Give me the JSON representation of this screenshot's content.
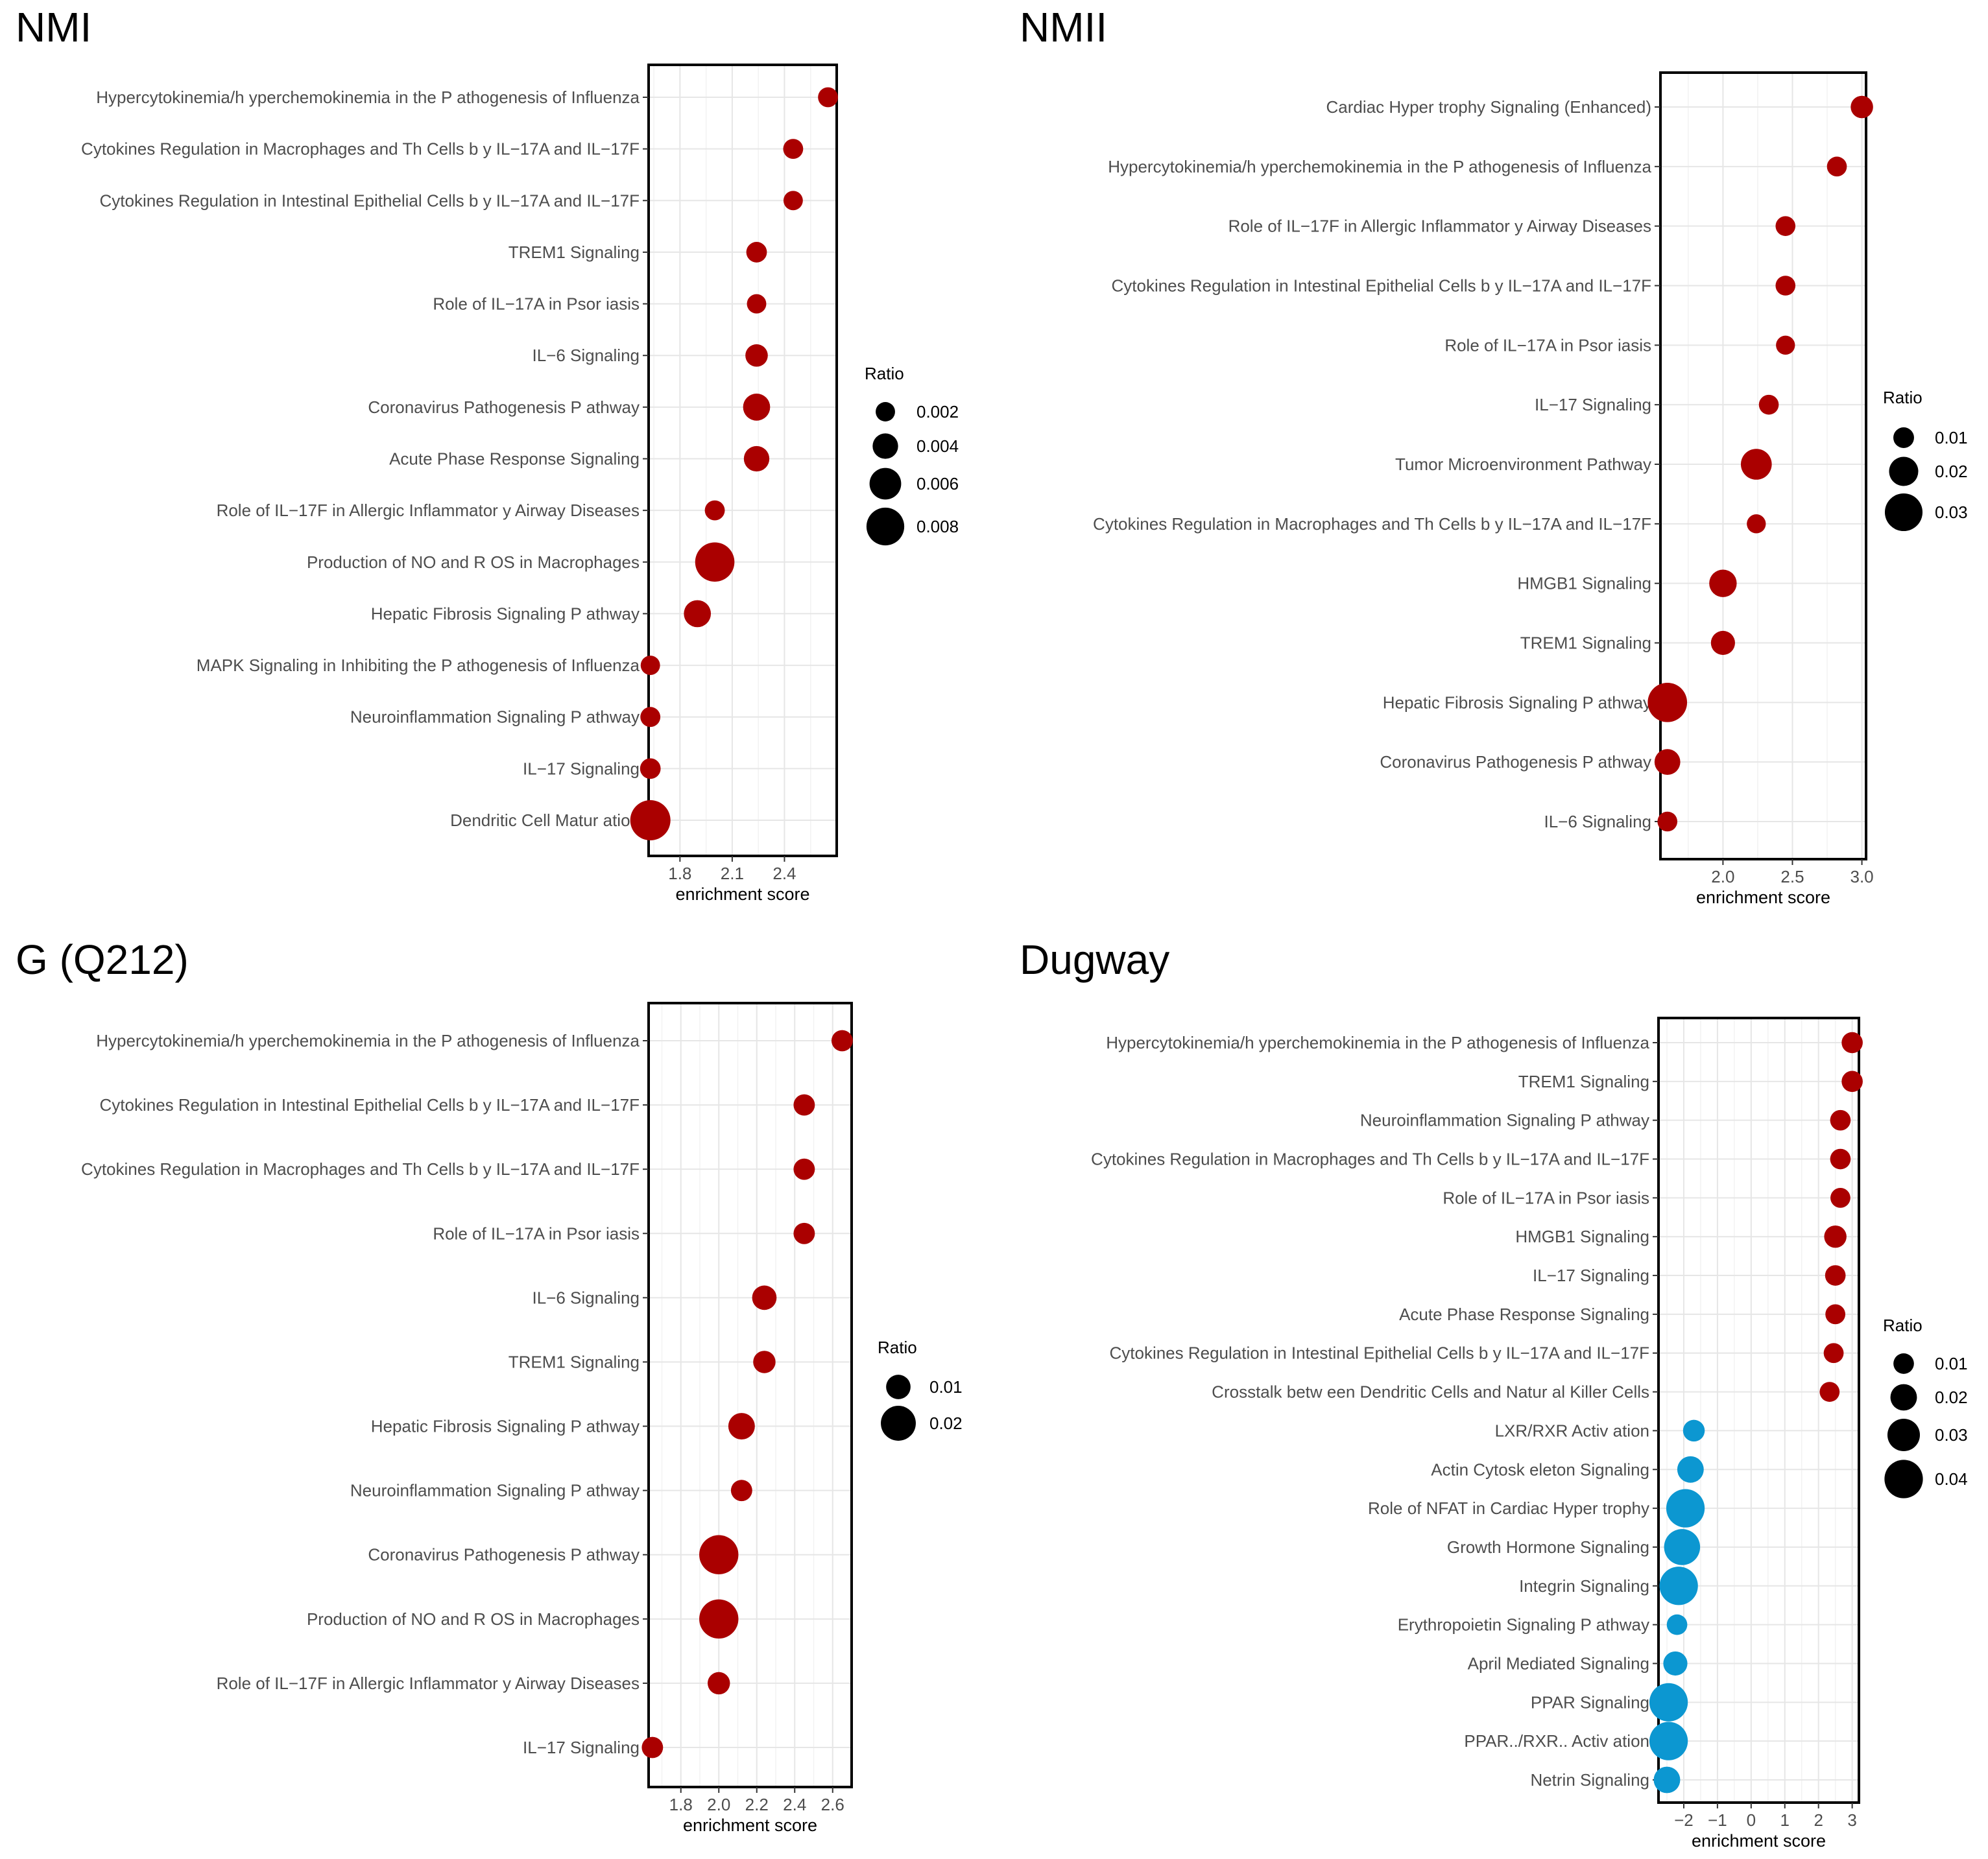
{
  "chart_data": [
    {
      "type": "scatter",
      "panel_title": "NMI",
      "xlabel": "enrichment score",
      "xlim": [
        1.62,
        2.7
      ],
      "xticks": [
        1.8,
        2.1,
        2.4
      ],
      "xtick_labels": [
        "1.8",
        "2.1",
        "2.4"
      ],
      "size_legend_title": "Ratio",
      "size_legend": [
        {
          "label": "0.002",
          "value": 0.002
        },
        {
          "label": "0.004",
          "value": 0.004
        },
        {
          "label": "0.006",
          "value": 0.006
        },
        {
          "label": "0.008",
          "value": 0.008
        }
      ],
      "size_range": [
        0.0016,
        0.0088
      ],
      "points": [
        {
          "label": "Hypercytokinemia/h yperchemokinemia in the P athogenesis of Influenza",
          "score": 2.65,
          "ratio": 0.0022,
          "color": "#aa0000"
        },
        {
          "label": "Cytokines Regulation in Macrophages and Th Cells b  y IL−17A and IL−17F",
          "score": 2.45,
          "ratio": 0.0022,
          "color": "#aa0000"
        },
        {
          "label": "Cytokines Regulation in Intestinal Epithelial Cells b  y IL−17A and IL−17F",
          "score": 2.45,
          "ratio": 0.002,
          "color": "#aa0000"
        },
        {
          "label": "TREM1 Signaling",
          "score": 2.24,
          "ratio": 0.0024,
          "color": "#aa0000"
        },
        {
          "label": "Role of IL−17A in Psor iasis",
          "score": 2.24,
          "ratio": 0.002,
          "color": "#aa0000"
        },
        {
          "label": "IL−6 Signaling",
          "score": 2.24,
          "ratio": 0.003,
          "color": "#aa0000"
        },
        {
          "label": "Coronavirus Pathogenesis P athway",
          "score": 2.24,
          "ratio": 0.0045,
          "color": "#aa0000"
        },
        {
          "label": "Acute Phase Response Signaling",
          "score": 2.24,
          "ratio": 0.004,
          "color": "#aa0000"
        },
        {
          "label": "Role of IL−17F in Allergic Inflammator y Airway Diseases",
          "score": 2.0,
          "ratio": 0.0022,
          "color": "#aa0000"
        },
        {
          "label": "Production of NO and R OS in Macrophages",
          "score": 2.0,
          "ratio": 0.0085,
          "color": "#aa0000"
        },
        {
          "label": "Hepatic Fibrosis Signaling P athway",
          "score": 1.9,
          "ratio": 0.0045,
          "color": "#aa0000"
        },
        {
          "label": "MAPK Signaling in Inhibiting the P athogenesis of Influenza",
          "score": 1.63,
          "ratio": 0.002,
          "color": "#aa0000"
        },
        {
          "label": "Neuroinflammation Signaling P athway",
          "score": 1.63,
          "ratio": 0.0022,
          "color": "#aa0000"
        },
        {
          "label": "IL−17 Signaling",
          "score": 1.63,
          "ratio": 0.0024,
          "color": "#aa0000"
        },
        {
          "label": "Dendritic Cell Matur ation",
          "score": 1.63,
          "ratio": 0.0088,
          "color": "#aa0000"
        }
      ]
    },
    {
      "type": "scatter",
      "panel_title": "NMII",
      "xlabel": "enrichment score",
      "xlim": [
        1.55,
        3.03
      ],
      "xticks": [
        2.0,
        2.5,
        3.0
      ],
      "xtick_labels": [
        "2.0",
        "2.5",
        "3.0"
      ],
      "size_legend_title": "Ratio",
      "size_legend": [
        {
          "label": "0.01",
          "value": 0.01
        },
        {
          "label": "0.02",
          "value": 0.02
        },
        {
          "label": "0.03",
          "value": 0.03
        }
      ],
      "size_range": [
        0.007,
        0.033
      ],
      "points": [
        {
          "label": "Cardiac Hyper trophy Signaling (Enhanced)",
          "score": 3.0,
          "ratio": 0.012,
          "color": "#aa0000"
        },
        {
          "label": "Hypercytokinemia/h yperchemokinemia in the P athogenesis of Influenza",
          "score": 2.82,
          "ratio": 0.009,
          "color": "#aa0000"
        },
        {
          "label": "Role of IL−17F in Allergic Inflammator y Airway Diseases",
          "score": 2.45,
          "ratio": 0.009,
          "color": "#aa0000"
        },
        {
          "label": "Cytokines Regulation in Intestinal Epithelial Cells b  y IL−17A and IL−17F",
          "score": 2.45,
          "ratio": 0.009,
          "color": "#aa0000"
        },
        {
          "label": "Role of IL−17A in Psor iasis",
          "score": 2.45,
          "ratio": 0.008,
          "color": "#aa0000"
        },
        {
          "label": "IL−17 Signaling",
          "score": 2.33,
          "ratio": 0.009,
          "color": "#aa0000"
        },
        {
          "label": "Tumor Microenvironment Pathway",
          "score": 2.24,
          "ratio": 0.022,
          "color": "#aa0000"
        },
        {
          "label": "Cytokines Regulation in Macrophages and Th Cells b  y IL−17A and IL−17F",
          "score": 2.24,
          "ratio": 0.008,
          "color": "#aa0000"
        },
        {
          "label": "HMGB1 Signaling",
          "score": 2.0,
          "ratio": 0.018,
          "color": "#aa0000"
        },
        {
          "label": "TREM1 Signaling",
          "score": 2.0,
          "ratio": 0.014,
          "color": "#aa0000"
        },
        {
          "label": "Hepatic Fibrosis Signaling P athway",
          "score": 1.6,
          "ratio": 0.032,
          "color": "#aa0000"
        },
        {
          "label": "Coronavirus Pathogenesis P athway",
          "score": 1.6,
          "ratio": 0.016,
          "color": "#aa0000"
        },
        {
          "label": "IL−6 Signaling",
          "score": 1.6,
          "ratio": 0.009,
          "color": "#aa0000"
        }
      ]
    },
    {
      "type": "scatter",
      "panel_title": "G (Q212)",
      "xlabel": "enrichment score",
      "xlim": [
        1.63,
        2.7
      ],
      "xticks": [
        1.8,
        2.0,
        2.2,
        2.4,
        2.6
      ],
      "xtick_labels": [
        "1.8",
        "2.0",
        "2.2",
        "2.4",
        "2.6"
      ],
      "size_legend_title": "Ratio",
      "size_legend": [
        {
          "label": "0.01",
          "value": 0.01
        },
        {
          "label": "0.02",
          "value": 0.02
        }
      ],
      "size_range": [
        0.004,
        0.025
      ],
      "points": [
        {
          "label": "Hypercytokinemia/h yperchemokinemia in the P athogenesis of Influenza",
          "score": 2.65,
          "ratio": 0.007,
          "color": "#aa0000"
        },
        {
          "label": "Cytokines Regulation in Intestinal Epithelial Cells b  y IL−17A and IL−17F",
          "score": 2.45,
          "ratio": 0.007,
          "color": "#aa0000"
        },
        {
          "label": "Cytokines Regulation in Macrophages and Th Cells b  y IL−17A and IL−17F",
          "score": 2.45,
          "ratio": 0.007,
          "color": "#aa0000"
        },
        {
          "label": "Role of IL−17A in Psor iasis",
          "score": 2.45,
          "ratio": 0.007,
          "color": "#aa0000"
        },
        {
          "label": "IL−6 Signaling",
          "score": 2.24,
          "ratio": 0.01,
          "color": "#aa0000"
        },
        {
          "label": "TREM1 Signaling",
          "score": 2.24,
          "ratio": 0.008,
          "color": "#aa0000"
        },
        {
          "label": "Hepatic Fibrosis Signaling P athway",
          "score": 2.12,
          "ratio": 0.012,
          "color": "#aa0000"
        },
        {
          "label": "Neuroinflammation Signaling P athway",
          "score": 2.12,
          "ratio": 0.007,
          "color": "#aa0000"
        },
        {
          "label": "Coronavirus Pathogenesis P athway",
          "score": 2.0,
          "ratio": 0.024,
          "color": "#aa0000"
        },
        {
          "label": "Production of NO and R OS in Macrophages",
          "score": 2.0,
          "ratio": 0.024,
          "color": "#aa0000"
        },
        {
          "label": "Role of IL−17F in Allergic Inflammator y Airway Diseases",
          "score": 2.0,
          "ratio": 0.008,
          "color": "#aa0000"
        },
        {
          "label": "IL−17 Signaling",
          "score": 1.65,
          "ratio": 0.007,
          "color": "#aa0000"
        }
      ]
    },
    {
      "type": "scatter",
      "panel_title": "Dugway",
      "xlabel": "enrichment score",
      "xlim": [
        -2.75,
        3.2
      ],
      "xticks": [
        -2,
        -1,
        0,
        1,
        2,
        3
      ],
      "xtick_labels": [
        "−2",
        "−1",
        "0",
        "1",
        "2",
        "3"
      ],
      "size_legend_title": "Ratio",
      "size_legend": [
        {
          "label": "0.01",
          "value": 0.01
        },
        {
          "label": "0.02",
          "value": 0.02
        },
        {
          "label": "0.03",
          "value": 0.03
        },
        {
          "label": "0.04",
          "value": 0.04
        }
      ],
      "size_range": [
        0.006,
        0.043
      ],
      "points": [
        {
          "label": "Hypercytokinemia/h yperchemokinemia in the P athogenesis of Influenza",
          "score": 3.0,
          "ratio": 0.011,
          "color": "#aa0000"
        },
        {
          "label": "TREM1 Signaling",
          "score": 3.0,
          "ratio": 0.011,
          "color": "#aa0000"
        },
        {
          "label": "Neuroinflammation Signaling P athway",
          "score": 2.65,
          "ratio": 0.01,
          "color": "#aa0000"
        },
        {
          "label": "Cytokines Regulation in Macrophages and Th Cells b  y IL−17A and IL−17F",
          "score": 2.65,
          "ratio": 0.01,
          "color": "#aa0000"
        },
        {
          "label": "Role of IL−17A in Psor iasis",
          "score": 2.65,
          "ratio": 0.009,
          "color": "#aa0000"
        },
        {
          "label": "HMGB1 Signaling",
          "score": 2.5,
          "ratio": 0.013,
          "color": "#aa0000"
        },
        {
          "label": "IL−17 Signaling",
          "score": 2.5,
          "ratio": 0.01,
          "color": "#aa0000"
        },
        {
          "label": "Acute Phase Response Signaling",
          "score": 2.5,
          "ratio": 0.009,
          "color": "#aa0000"
        },
        {
          "label": "Cytokines Regulation in Intestinal Epithelial Cells b  y IL−17A and IL−17F",
          "score": 2.45,
          "ratio": 0.009,
          "color": "#aa0000"
        },
        {
          "label": "Crosstalk betw een Dendritic Cells and Natur al Killer Cells",
          "score": 2.33,
          "ratio": 0.009,
          "color": "#aa0000"
        },
        {
          "label": "LXR/RXR Activ ation",
          "score": -1.7,
          "ratio": 0.012,
          "color": "#0c97d1"
        },
        {
          "label": "Actin Cytosk eleton Signaling",
          "score": -1.8,
          "ratio": 0.02,
          "color": "#0c97d1"
        },
        {
          "label": "Role of NFAT in Cardiac Hyper trophy",
          "score": -1.95,
          "ratio": 0.04,
          "color": "#0c97d1"
        },
        {
          "label": "Growth Hormone Signaling",
          "score": -2.05,
          "ratio": 0.036,
          "color": "#0c97d1"
        },
        {
          "label": "Integrin Signaling",
          "score": -2.15,
          "ratio": 0.04,
          "color": "#0c97d1"
        },
        {
          "label": "Erythropoietin Signaling P athway",
          "score": -2.2,
          "ratio": 0.01,
          "color": "#0c97d1"
        },
        {
          "label": "April Mediated Signaling",
          "score": -2.25,
          "ratio": 0.016,
          "color": "#0c97d1"
        },
        {
          "label": "PPAR Signaling",
          "score": -2.45,
          "ratio": 0.04,
          "color": "#0c97d1"
        },
        {
          "label": "PPAR../RXR.. Activ ation",
          "score": -2.45,
          "ratio": 0.04,
          "color": "#0c97d1"
        },
        {
          "label": "Netrin Signaling",
          "score": -2.5,
          "ratio": 0.02,
          "color": "#0c97d1"
        }
      ]
    }
  ]
}
